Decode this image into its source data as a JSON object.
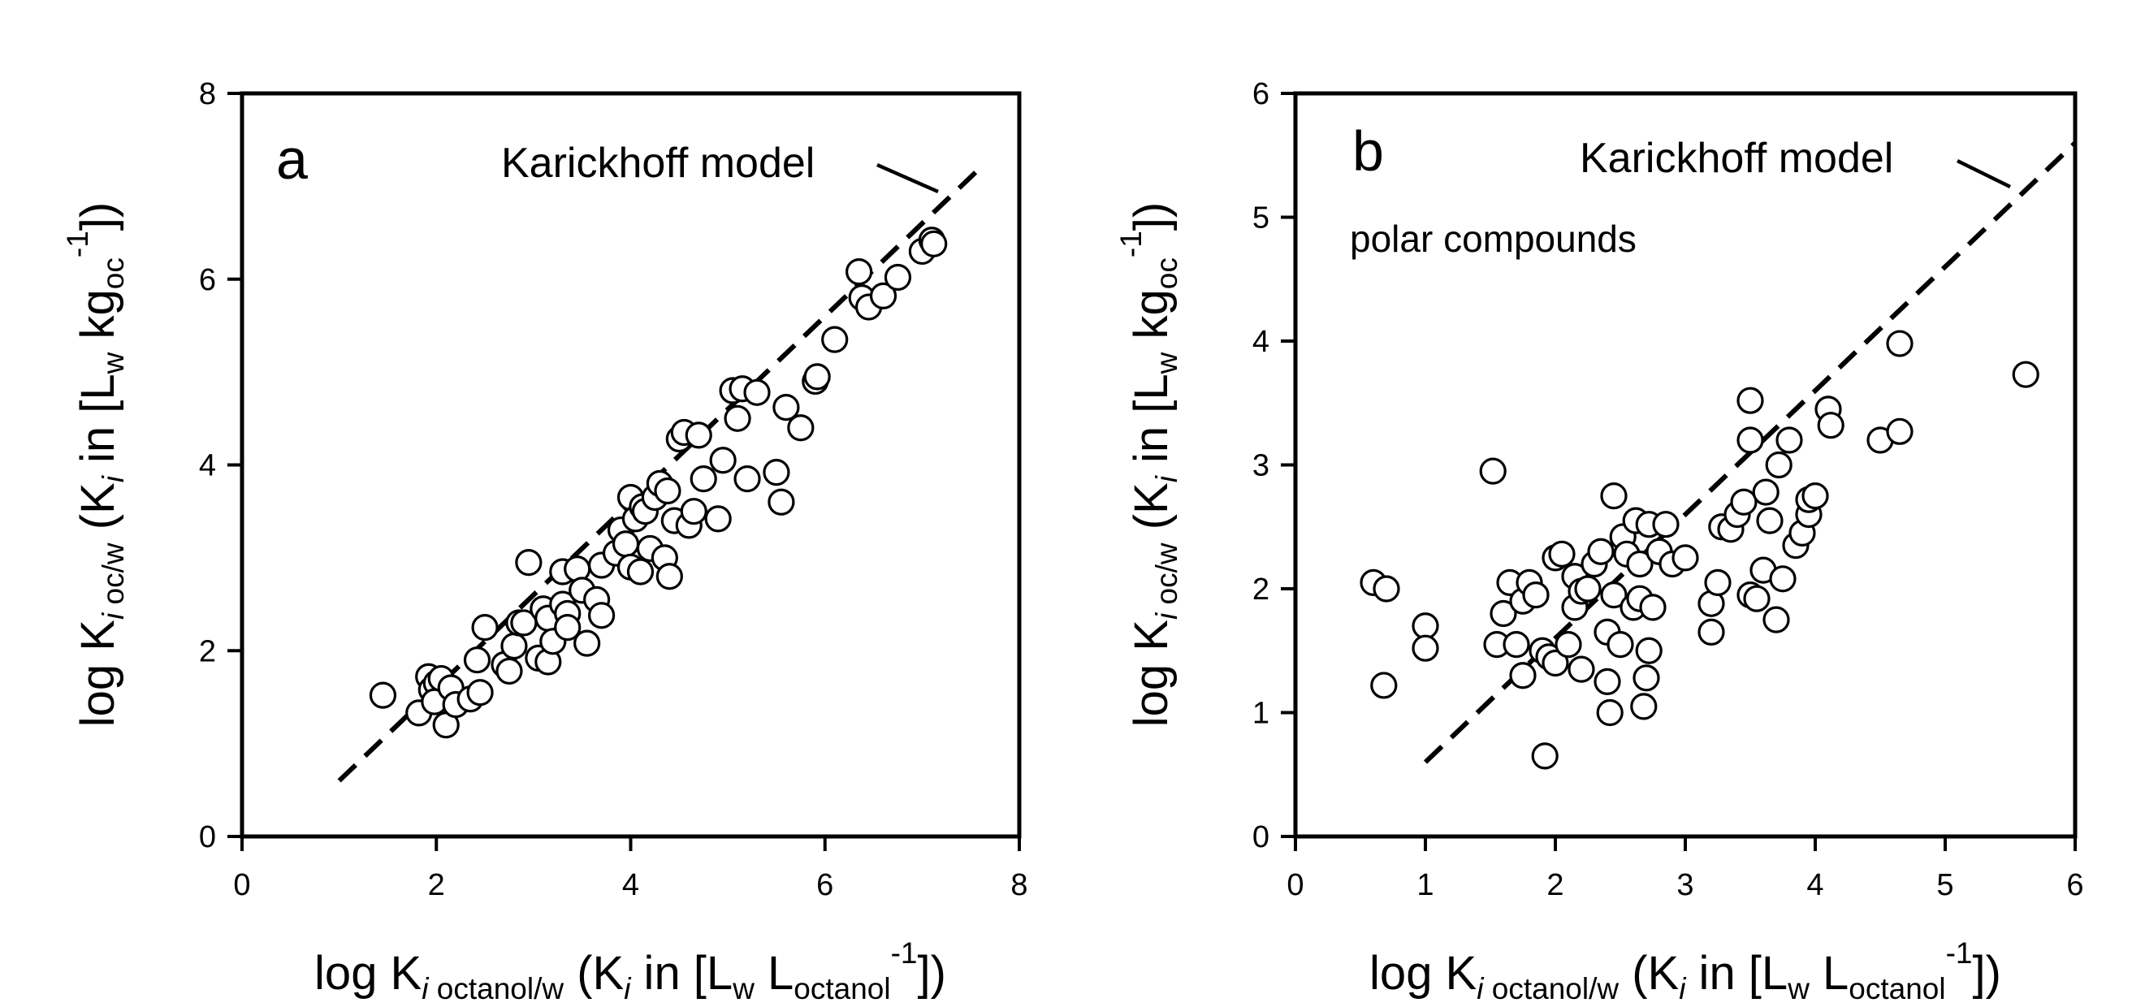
{
  "chart_data": [
    {
      "type": "scatter",
      "panel_label": "a",
      "annotation": "Karickhoff model",
      "note": "",
      "xlabel": {
        "main": "log K",
        "sub1": "i",
        "sub2": " octanol/w",
        "paren": " (K",
        "sub3": "i",
        "in": " in [L",
        "sub4": "w",
        "space": " L",
        "sub5": "octanol",
        "sup": "-1",
        "close": "])"
      },
      "ylabel": {
        "main": "log K",
        "sub1": "i",
        "sub2": " oc/w",
        "paren": " (K",
        "sub3": "i",
        "in": " in [L",
        "sub4": "w",
        "space": " kg",
        "sub5": "oc",
        "sup": "-1",
        "close": "])"
      },
      "xlim": [
        0,
        8
      ],
      "ylim": [
        0,
        8
      ],
      "xticks": [
        "0",
        "2",
        "4",
        "6",
        "8"
      ],
      "yticks": [
        "0",
        "2",
        "4",
        "6",
        "8"
      ],
      "model_line": {
        "x": [
          1.0,
          7.55
        ],
        "y": [
          0.6,
          7.15
        ]
      },
      "points": [
        [
          1.45,
          1.52
        ],
        [
          1.82,
          1.33
        ],
        [
          1.92,
          1.72
        ],
        [
          1.95,
          1.58
        ],
        [
          2.0,
          1.65
        ],
        [
          1.98,
          1.45
        ],
        [
          2.05,
          1.7
        ],
        [
          2.1,
          1.2
        ],
        [
          2.15,
          1.6
        ],
        [
          2.2,
          1.42
        ],
        [
          2.35,
          1.48
        ],
        [
          2.45,
          1.55
        ],
        [
          2.42,
          1.9
        ],
        [
          2.5,
          2.25
        ],
        [
          2.7,
          1.85
        ],
        [
          2.75,
          1.78
        ],
        [
          2.8,
          2.05
        ],
        [
          2.85,
          2.3
        ],
        [
          2.9,
          2.3
        ],
        [
          2.95,
          2.95
        ],
        [
          3.05,
          1.92
        ],
        [
          3.1,
          2.45
        ],
        [
          3.15,
          2.35
        ],
        [
          3.15,
          1.88
        ],
        [
          3.2,
          2.1
        ],
        [
          3.3,
          2.5
        ],
        [
          3.35,
          2.4
        ],
        [
          3.35,
          2.25
        ],
        [
          3.3,
          2.85
        ],
        [
          3.45,
          2.88
        ],
        [
          3.5,
          2.65
        ],
        [
          3.55,
          2.08
        ],
        [
          3.65,
          2.55
        ],
        [
          3.7,
          2.38
        ],
        [
          3.7,
          2.92
        ],
        [
          3.85,
          3.05
        ],
        [
          3.9,
          3.3
        ],
        [
          3.95,
          3.15
        ],
        [
          4.0,
          3.65
        ],
        [
          4.0,
          2.9
        ],
        [
          4.05,
          3.42
        ],
        [
          4.1,
          2.85
        ],
        [
          4.12,
          3.55
        ],
        [
          4.15,
          3.5
        ],
        [
          4.2,
          3.1
        ],
        [
          4.25,
          3.65
        ],
        [
          4.3,
          3.8
        ],
        [
          4.35,
          3.0
        ],
        [
          4.38,
          3.72
        ],
        [
          4.4,
          2.8
        ],
        [
          4.45,
          3.4
        ],
        [
          4.5,
          4.28
        ],
        [
          4.55,
          4.35
        ],
        [
          4.6,
          3.35
        ],
        [
          4.65,
          3.5
        ],
        [
          4.7,
          4.32
        ],
        [
          4.75,
          3.85
        ],
        [
          4.9,
          3.42
        ],
        [
          4.95,
          4.05
        ],
        [
          5.05,
          4.8
        ],
        [
          5.1,
          4.5
        ],
        [
          5.15,
          4.82
        ],
        [
          5.2,
          3.85
        ],
        [
          5.3,
          4.78
        ],
        [
          5.5,
          3.92
        ],
        [
          5.55,
          3.6
        ],
        [
          5.6,
          4.62
        ],
        [
          5.75,
          4.4
        ],
        [
          5.9,
          4.9
        ],
        [
          5.92,
          4.95
        ],
        [
          6.1,
          5.35
        ],
        [
          6.35,
          6.08
        ],
        [
          6.38,
          5.8
        ],
        [
          6.45,
          5.7
        ],
        [
          6.6,
          5.82
        ],
        [
          6.75,
          6.02
        ],
        [
          7.0,
          6.3
        ],
        [
          7.1,
          6.42
        ],
        [
          7.12,
          6.38
        ]
      ]
    },
    {
      "type": "scatter",
      "panel_label": "b",
      "annotation": "Karickhoff model",
      "note": "polar compounds",
      "xlabel": {
        "main": "log K",
        "sub1": "i",
        "sub2": " octanol/w",
        "paren": " (K",
        "sub3": "i",
        "in": " in [L",
        "sub4": "w",
        "space": " L",
        "sub5": "octanol",
        "sup": "-1",
        "close": "])"
      },
      "ylabel": {
        "main": "log K",
        "sub1": "i",
        "sub2": " oc/w",
        "paren": " (K",
        "sub3": "i",
        "in": " in [L",
        "sub4": "w",
        "space": " kg",
        "sub5": "oc",
        "sup": "-1",
        "close": "])"
      },
      "xlim": [
        0,
        6
      ],
      "ylim": [
        0,
        6
      ],
      "xticks": [
        "0",
        "1",
        "2",
        "3",
        "4",
        "5",
        "6"
      ],
      "yticks": [
        "0",
        "1",
        "2",
        "3",
        "4",
        "5",
        "6"
      ],
      "model_line": {
        "x": [
          1.0,
          6.0
        ],
        "y": [
          0.6,
          5.6
        ]
      },
      "points": [
        [
          0.6,
          2.05
        ],
        [
          0.7,
          2.0
        ],
        [
          0.68,
          1.22
        ],
        [
          1.0,
          1.7
        ],
        [
          1.0,
          1.52
        ],
        [
          1.52,
          2.95
        ],
        [
          1.55,
          1.55
        ],
        [
          1.6,
          1.8
        ],
        [
          1.65,
          2.05
        ],
        [
          1.7,
          1.55
        ],
        [
          1.75,
          1.3
        ],
        [
          1.75,
          1.9
        ],
        [
          1.8,
          2.05
        ],
        [
          1.85,
          1.95
        ],
        [
          1.9,
          1.5
        ],
        [
          1.92,
          0.65
        ],
        [
          1.95,
          1.45
        ],
        [
          2.0,
          2.25
        ],
        [
          2.0,
          1.4
        ],
        [
          2.05,
          2.28
        ],
        [
          2.1,
          1.55
        ],
        [
          2.15,
          2.1
        ],
        [
          2.15,
          1.85
        ],
        [
          2.2,
          1.98
        ],
        [
          2.2,
          1.35
        ],
        [
          2.25,
          2.0
        ],
        [
          2.3,
          2.2
        ],
        [
          2.35,
          2.3
        ],
        [
          2.4,
          1.25
        ],
        [
          2.4,
          1.65
        ],
        [
          2.42,
          1.0
        ],
        [
          2.45,
          1.95
        ],
        [
          2.45,
          2.75
        ],
        [
          2.5,
          1.55
        ],
        [
          2.52,
          2.42
        ],
        [
          2.55,
          2.28
        ],
        [
          2.6,
          1.85
        ],
        [
          2.62,
          2.55
        ],
        [
          2.65,
          2.2
        ],
        [
          2.65,
          1.92
        ],
        [
          2.68,
          1.05
        ],
        [
          2.7,
          1.28
        ],
        [
          2.72,
          2.52
        ],
        [
          2.72,
          1.5
        ],
        [
          2.75,
          1.85
        ],
        [
          2.8,
          2.3
        ],
        [
          2.85,
          2.52
        ],
        [
          2.9,
          2.2
        ],
        [
          3.0,
          2.25
        ],
        [
          3.2,
          1.65
        ],
        [
          3.2,
          1.88
        ],
        [
          3.25,
          2.05
        ],
        [
          3.28,
          2.5
        ],
        [
          3.35,
          2.48
        ],
        [
          3.4,
          2.6
        ],
        [
          3.45,
          2.7
        ],
        [
          3.5,
          3.52
        ],
        [
          3.5,
          3.2
        ],
        [
          3.5,
          1.95
        ],
        [
          3.55,
          1.92
        ],
        [
          3.6,
          2.15
        ],
        [
          3.62,
          2.78
        ],
        [
          3.65,
          2.55
        ],
        [
          3.7,
          1.75
        ],
        [
          3.72,
          3.0
        ],
        [
          3.75,
          2.08
        ],
        [
          3.8,
          3.2
        ],
        [
          3.85,
          2.35
        ],
        [
          3.9,
          2.45
        ],
        [
          3.95,
          2.6
        ],
        [
          3.95,
          2.72
        ],
        [
          4.0,
          2.75
        ],
        [
          4.1,
          3.45
        ],
        [
          4.12,
          3.32
        ],
        [
          4.5,
          3.2
        ],
        [
          4.65,
          3.98
        ],
        [
          4.65,
          3.27
        ],
        [
          5.62,
          3.73
        ]
      ]
    }
  ]
}
